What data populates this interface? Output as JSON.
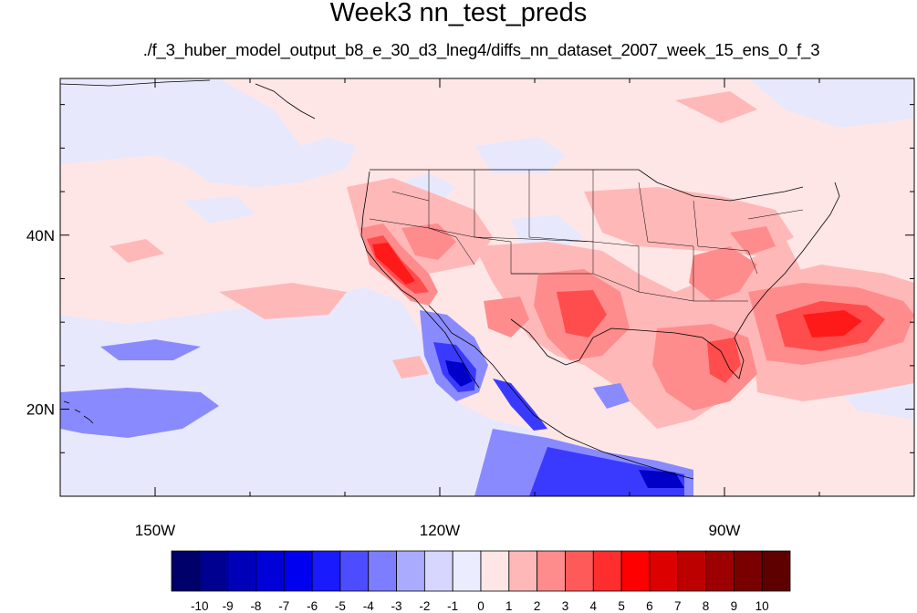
{
  "title": "Week3 nn_test_preds",
  "subtitle": "./f_3_huber_model_output_b8_e_30_d3_lneg4/diffs_nn_dataset_2007_week_15_ens_0_f_3",
  "map": {
    "lon_range": [
      -160,
      -70
    ],
    "lat_range": [
      10,
      58
    ],
    "x_ticks": [
      {
        "value": -150,
        "label": "150W"
      },
      {
        "value": -120,
        "label": "120W"
      },
      {
        "value": -90,
        "label": "90W"
      }
    ],
    "y_ticks": [
      {
        "value": 40,
        "label": "40N"
      },
      {
        "value": 20,
        "label": "20N"
      }
    ],
    "background_level": 0.4
  },
  "colorbar": {
    "levels": [
      -10,
      -9,
      -8,
      -7,
      -6,
      -5,
      -4,
      -3,
      -2,
      -1,
      0,
      1,
      2,
      3,
      4,
      5,
      6,
      7,
      8,
      9,
      10
    ],
    "labels": [
      "-10",
      "-9",
      "-8",
      "-7",
      "-6",
      "-5",
      "-4",
      "-3",
      "-2",
      "-1",
      "0",
      "1",
      "2",
      "3",
      "4",
      "5",
      "6",
      "7",
      "8",
      "9",
      "10"
    ],
    "colors": [
      "#00006a",
      "#000090",
      "#0000b8",
      "#0000d8",
      "#0000f0",
      "#1a1aff",
      "#4d4dff",
      "#7d7dff",
      "#aaaaff",
      "#d6d6ff",
      "#ececff",
      "#ffe6e6",
      "#ffb8b8",
      "#ff8c8c",
      "#ff5a5a",
      "#ff2e2e",
      "#ff0000",
      "#dc0000",
      "#bc0000",
      "#9c0000",
      "#7a0000",
      "#5e0000"
    ]
  }
}
